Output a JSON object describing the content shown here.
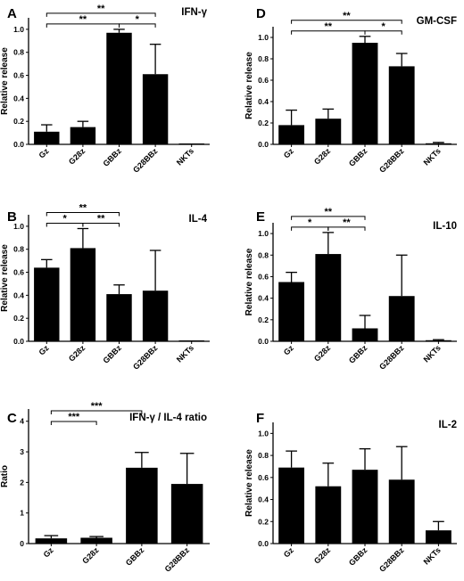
{
  "chart_data": [
    {
      "panel": "A",
      "type": "bar",
      "title": "IFN-γ",
      "ylabel": "Relative release",
      "categories": [
        "Gz",
        "G28z",
        "GBBz",
        "G28BBz",
        "NKTs"
      ],
      "values": [
        0.11,
        0.15,
        0.97,
        0.61,
        0.005
      ],
      "errors": [
        0.06,
        0.05,
        0.03,
        0.26,
        0.003
      ],
      "ylim": [
        0,
        1.1
      ],
      "yticks": [
        "0.0",
        "0.2",
        "0.4",
        "0.6",
        "0.8",
        "1.0"
      ],
      "significance": [
        {
          "from": "Gz",
          "to": "GBBz",
          "label": "**"
        },
        {
          "from": "Gz",
          "to": "G28BBz",
          "label": "**"
        },
        {
          "from": "GBBz",
          "to": "G28BBz",
          "label": "*"
        }
      ]
    },
    {
      "panel": "D",
      "type": "bar",
      "title": "GM-CSF",
      "ylabel": "Relative release",
      "categories": [
        "Gz",
        "G28z",
        "GBBz",
        "G28BBz",
        "NKTs"
      ],
      "values": [
        0.18,
        0.24,
        0.95,
        0.73,
        0.01
      ],
      "errors": [
        0.14,
        0.09,
        0.06,
        0.12,
        0.008
      ],
      "ylim": [
        0,
        1.1
      ],
      "yticks": [
        "0.0",
        "0.2",
        "0.4",
        "0.6",
        "0.8",
        "1.0"
      ],
      "significance": [
        {
          "from": "Gz",
          "to": "GBBz",
          "label": "**"
        },
        {
          "from": "Gz",
          "to": "G28BBz",
          "label": "**"
        },
        {
          "from": "GBBz",
          "to": "G28BBz",
          "label": "*"
        }
      ]
    },
    {
      "panel": "B",
      "type": "bar",
      "title": "IL-4",
      "ylabel": "Relative release",
      "categories": [
        "Gz",
        "G28z",
        "GBBz",
        "G28BBz",
        "NKTs"
      ],
      "values": [
        0.64,
        0.81,
        0.41,
        0.44,
        0.005
      ],
      "errors": [
        0.07,
        0.17,
        0.08,
        0.35,
        0.003
      ],
      "ylim": [
        0,
        1.1
      ],
      "yticks": [
        "0.0",
        "0.2",
        "0.4",
        "0.6",
        "0.8",
        "1.0"
      ],
      "significance": [
        {
          "from": "Gz",
          "to": "G28z",
          "label": "*"
        },
        {
          "from": "Gz",
          "to": "GBBz",
          "label": "**"
        },
        {
          "from": "G28z",
          "to": "GBBz",
          "label": "**"
        }
      ]
    },
    {
      "panel": "E",
      "type": "bar",
      "title": "IL-10",
      "ylabel": "Relative release",
      "categories": [
        "Gz",
        "G28z",
        "GBBz",
        "G28BBz",
        "NKTs"
      ],
      "values": [
        0.55,
        0.81,
        0.12,
        0.42,
        0.01
      ],
      "errors": [
        0.09,
        0.2,
        0.12,
        0.38,
        0.005
      ],
      "ylim": [
        0,
        1.1
      ],
      "yticks": [
        "0.0",
        "0.2",
        "0.4",
        "0.6",
        "0.8",
        "1.0"
      ],
      "significance": [
        {
          "from": "Gz",
          "to": "G28z",
          "label": "*"
        },
        {
          "from": "Gz",
          "to": "GBBz",
          "label": "**"
        },
        {
          "from": "G28z",
          "to": "GBBz",
          "label": "**"
        }
      ]
    },
    {
      "panel": "C",
      "type": "bar",
      "title": "IFN-γ / IL-4 ratio",
      "ylabel": "Ratio",
      "categories": [
        "Gz",
        "G28z",
        "GBBz",
        "G28BBz"
      ],
      "values": [
        0.17,
        0.19,
        2.48,
        1.95
      ],
      "errors": [
        0.09,
        0.04,
        0.5,
        1.0
      ],
      "ylim": [
        0,
        4.4
      ],
      "yticks": [
        "0",
        "1",
        "2",
        "3",
        "4"
      ],
      "significance": [
        {
          "from": "Gz",
          "to": "G28z",
          "label": "***"
        },
        {
          "from": "Gz",
          "to": "GBBz",
          "label": "***"
        }
      ]
    },
    {
      "panel": "F",
      "type": "bar",
      "title": "IL-2",
      "ylabel": "Relative release",
      "categories": [
        "Gz",
        "G28z",
        "GBBz",
        "G28BBz",
        "NKTs"
      ],
      "values": [
        0.69,
        0.52,
        0.67,
        0.58,
        0.12
      ],
      "errors": [
        0.15,
        0.21,
        0.19,
        0.3,
        0.08
      ],
      "ylim": [
        0,
        1.1
      ],
      "yticks": [
        "0.0",
        "0.2",
        "0.4",
        "0.6",
        "0.8",
        "1.0"
      ],
      "significance": []
    }
  ],
  "colors": {
    "bar": "#000000",
    "axis": "#000000"
  }
}
